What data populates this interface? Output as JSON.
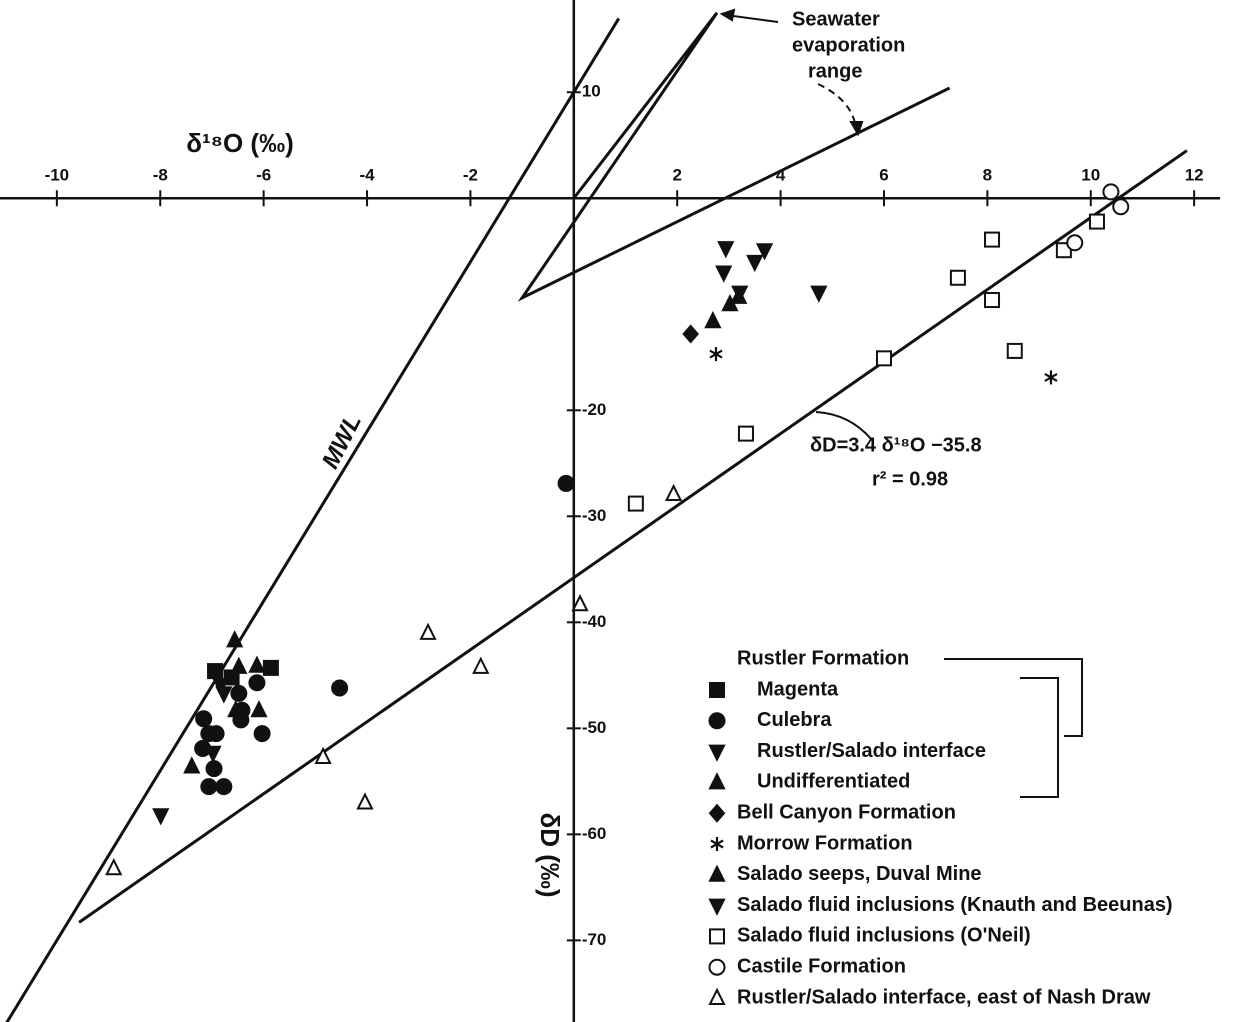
{
  "chart_data": {
    "type": "scatter",
    "xlabel": "δ¹⁸O (‰)",
    "ylabel": "δD (‰)",
    "xlim": [
      -11.1,
      12.5
    ],
    "ylim": [
      -77.7,
      18.7
    ],
    "xticks": [
      -10,
      -8,
      -6,
      -4,
      -2,
      2,
      4,
      6,
      8,
      10,
      12
    ],
    "yticks": [
      10,
      -20,
      -30,
      -40,
      -50,
      -60,
      -70
    ],
    "lines": [
      {
        "label": "MWL",
        "x": [
          -11.1,
          0.87
        ],
        "y": [
          -78.8,
          16.96
        ]
      },
      {
        "x": [
          -9.57,
          11.86
        ],
        "y": [
          -68.3,
          4.5
        ]
      },
      {
        "x": [
          0,
          2.77,
          -1.0,
          7.27
        ],
        "y": [
          0,
          17.5,
          -9.4,
          10.4
        ]
      }
    ],
    "annotations": {
      "seawater": [
        "Seawater",
        "evaporation",
        "range"
      ],
      "equation": "δD=3.4  δ¹⁸O −35.8",
      "r2": "r² = 0.98"
    },
    "legend_group_title": "Rustler Formation",
    "series": [
      {
        "name": "Magenta",
        "marker": "square",
        "filled": true,
        "grouped": true,
        "x": [
          -6.94,
          -5.86,
          -6.62
        ],
        "y": [
          -44.6,
          -44.3,
          -45.2
        ]
      },
      {
        "name": "Culebra",
        "marker": "circle",
        "filled": true,
        "grouped": true,
        "x": [
          -0.15,
          -4.53,
          -6.13,
          -6.48,
          -6.42,
          -7.16,
          -6.03,
          -7.06,
          -6.92,
          -7.18,
          -6.96,
          -7.06,
          -6.77,
          -6.44
        ],
        "y": [
          -26.9,
          -46.2,
          -45.7,
          -46.7,
          -48.3,
          -49.1,
          -50.5,
          -50.5,
          -50.5,
          -51.9,
          -53.8,
          -55.5,
          -55.5,
          -49.2
        ]
      },
      {
        "name": "Rustler/Salado interface",
        "marker": "tri-down",
        "filled": true,
        "grouped": true,
        "x": [
          -7.99,
          -6.98,
          -6.77,
          -6.83
        ],
        "y": [
          -58.2,
          -52.3,
          -46.7,
          -45.9
        ]
      },
      {
        "name": "Undifferentiated",
        "marker": "tri-up",
        "filled": true,
        "grouped": true,
        "x": [
          -6.56,
          -6.13,
          -6.09,
          -7.39,
          -6.48,
          -6.54
        ],
        "y": [
          -41.7,
          -44.1,
          -48.3,
          -53.6,
          -44.2,
          -48.3
        ]
      },
      {
        "name": "Bell Canyon Formation",
        "marker": "diamond",
        "filled": true,
        "x": [
          2.26
        ],
        "y": [
          -12.8
        ]
      },
      {
        "name": "Morrow Formation",
        "marker": "asterisk",
        "filled": true,
        "x": [
          2.75,
          9.23
        ],
        "y": [
          -14.7,
          -16.9
        ]
      },
      {
        "name": "Salado seeps, Duval Mine",
        "marker": "tri-up",
        "filled": true,
        "x": [
          2.69,
          3.02,
          3.19
        ],
        "y": [
          -11.6,
          -10.0,
          -9.3
        ]
      },
      {
        "name": "Salado fluid inclusions (Knauth and Beeunas)",
        "marker": "tri-down",
        "filled": true,
        "x": [
          2.94,
          2.9,
          3.5,
          3.69,
          4.74,
          3.21
        ],
        "y": [
          -4.7,
          -7.0,
          -6.0,
          -4.9,
          -8.9,
          -8.9
        ]
      },
      {
        "name": "Salado fluid inclusions (O'Neil)",
        "marker": "square",
        "filled": false,
        "x": [
          1.2,
          3.33,
          6.0,
          8.09,
          7.43,
          8.09,
          8.53,
          9.48,
          10.12
        ],
        "y": [
          -28.8,
          -22.2,
          -15.1,
          -3.9,
          -7.5,
          -9.6,
          -14.4,
          -4.9,
          -2.2
        ]
      },
      {
        "name": "Castile Formation",
        "marker": "circle",
        "filled": false,
        "x": [
          10.39,
          10.58,
          9.69
        ],
        "y": [
          0.6,
          -0.8,
          -4.2
        ]
      },
      {
        "name": "Rustler/Salado interface, east of Nash Draw",
        "marker": "tri-up",
        "filled": false,
        "x": [
          -8.9,
          -4.85,
          -4.04,
          -2.82,
          -1.8,
          0.12,
          1.93
        ],
        "y": [
          -63.2,
          -52.7,
          -57.0,
          -41.0,
          -44.2,
          -38.3,
          -27.9
        ]
      }
    ]
  }
}
